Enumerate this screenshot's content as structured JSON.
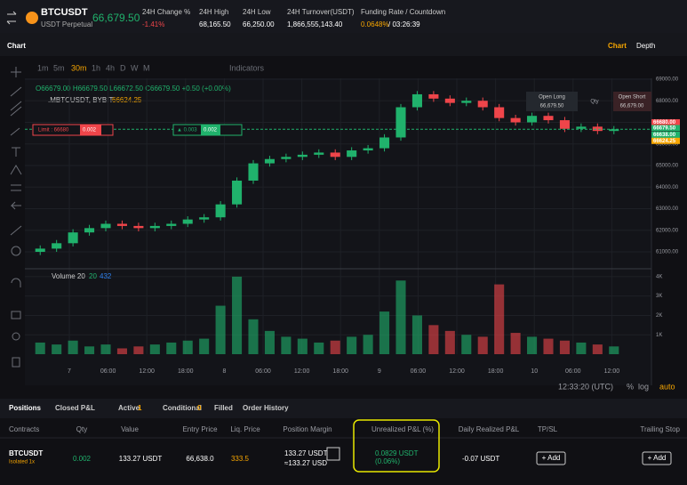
{
  "header": {
    "symbol": "BTCUSDT",
    "subtitle": "USDT Perpetual",
    "price": "66,679.50",
    "stats": [
      {
        "label": "24H Change %",
        "value": "-1.41%"
      },
      {
        "label": "24H High",
        "value": "68,165.50"
      },
      {
        "label": "24H Low",
        "value": "66,250.00"
      },
      {
        "label": "24H Turnover(USDT)",
        "value": "1,866,555,143.40"
      }
    ],
    "funding": {
      "label": "Funding Rate / Countdown",
      "rate": "0.0648%",
      "countdown": "/ 03:26:39"
    }
  },
  "panel": {
    "title": "Chart",
    "tabs": [
      "Chart",
      "Depth"
    ]
  },
  "toolbar": {
    "intervals": [
      "1m",
      "5m",
      "30m",
      "1h",
      "4h",
      "D",
      "W",
      "M"
    ],
    "indicators": "Indicators"
  },
  "legend": {
    "ohlc": "O66679.00 H66679.50 L66672.50 C66679.50 +0.50 (+0.00%)",
    "index_name": ".MBTCUSDT, BYBIT",
    "index_value": "66624.25",
    "volume": "Volume 20",
    "volume_period": "20",
    "volume_value": "432"
  },
  "orders": {
    "limit": "Limit : 66680",
    "limit_qty": "0.002",
    "position": "▲ 0.003",
    "position_qty": "0.002",
    "open_long": "Open Long",
    "open_long_price": "66,679.50",
    "qty": "Qty",
    "open_short": "Open Short",
    "open_short_price": "66,679.00"
  },
  "chart_data": {
    "type": "candlestick",
    "up_color": "#20b26c",
    "down_color": "#ef454a",
    "open": [
      61000,
      61150,
      61400,
      61900,
      62100,
      62300,
      62200,
      62100,
      62200,
      62300,
      62500,
      62600,
      63200,
      64300,
      65100,
      65300,
      65400,
      65500,
      65600,
      65400,
      65700,
      65800,
      66300,
      67700,
      68300,
      68100,
      67900,
      68000,
      67700,
      67200,
      67000,
      67300,
      67100,
      66700,
      66800,
      66600
    ],
    "high": [
      61300,
      61550,
      62050,
      62250,
      62450,
      62450,
      62350,
      62350,
      62450,
      62650,
      62750,
      63350,
      64450,
      65250,
      65450,
      65550,
      65650,
      65750,
      65750,
      65850,
      65950,
      66450,
      67850,
      68450,
      68450,
      68250,
      68150,
      68150,
      67850,
      67350,
      67450,
      67450,
      67250,
      66950,
      66950,
      66830
    ],
    "low": [
      60850,
      61000,
      61250,
      61750,
      61950,
      62050,
      61950,
      61950,
      62050,
      62150,
      62350,
      62450,
      63050,
      64150,
      64950,
      65150,
      65250,
      65350,
      65250,
      65250,
      65550,
      65650,
      66150,
      67550,
      67950,
      67750,
      67750,
      67550,
      67050,
      66850,
      66850,
      66950,
      66550,
      66550,
      66450,
      66450
    ],
    "close": [
      61150,
      61400,
      61900,
      62100,
      62300,
      62200,
      62100,
      62200,
      62300,
      62500,
      62600,
      63200,
      64300,
      65100,
      65300,
      65400,
      65500,
      65600,
      65400,
      65700,
      65800,
      66300,
      67700,
      68300,
      68100,
      67900,
      68000,
      67700,
      67200,
      67000,
      67300,
      67100,
      66700,
      66800,
      66600,
      66680
    ],
    "volume": [
      600,
      500,
      700,
      400,
      500,
      300,
      400,
      500,
      600,
      700,
      800,
      2500,
      4000,
      1800,
      1200,
      900,
      800,
      600,
      700,
      900,
      1000,
      2200,
      3800,
      2000,
      1500,
      1200,
      1000,
      900,
      3600,
      1100,
      900,
      800,
      700,
      600,
      500,
      400
    ],
    "ylim": [
      60300,
      69040
    ],
    "yticks": [
      {
        "value": 61000,
        "label": "61000.00"
      },
      {
        "value": 62000,
        "label": "62000.00"
      },
      {
        "value": 63000,
        "label": "63000.00"
      },
      {
        "value": 64000,
        "label": "64000.00"
      },
      {
        "value": 65000,
        "label": "65000.00"
      },
      {
        "value": 66000,
        "label": "66000.00"
      },
      {
        "value": 67000,
        "label": "67000.00"
      },
      {
        "value": 68000,
        "label": "68000.00"
      },
      {
        "value": 69000,
        "label": "69000.00"
      }
    ],
    "volume_ylim": [
      0,
      4270
    ],
    "volume_yticks": [
      {
        "value": 1000,
        "label": "1K"
      },
      {
        "value": 2000,
        "label": "2K"
      },
      {
        "value": 3000,
        "label": "3K"
      },
      {
        "value": 4000,
        "label": "4K"
      }
    ],
    "price_tags": [
      {
        "value": 66680,
        "label": "66680.00",
        "color": "#ef454a"
      },
      {
        "value": 66679.5,
        "label": "66679.50",
        "color": "#20b26c"
      },
      {
        "value": 66638,
        "label": "66638.00",
        "color": "#20b26c"
      },
      {
        "value": 66624.25,
        "label": "66624.25",
        "color": "#f7a600"
      }
    ],
    "time_labels": [
      "7",
      "06:00",
      "12:00",
      "18:00",
      "8",
      "06:00",
      "12:00",
      "18:00",
      "9",
      "06:00",
      "12:00",
      "18:00",
      "10",
      "06:00",
      "12:00"
    ]
  },
  "footer": {
    "clock": "12:33:20 (UTC)",
    "percent": "%",
    "log": "log",
    "auto": "auto"
  },
  "positions": {
    "tabs": [
      "Positions",
      "Closed P&L",
      "Active",
      "Conditional",
      "Filled",
      "Order History"
    ],
    "active_count": "1",
    "conditional_count": "0",
    "columns": [
      "Contracts",
      "Qty",
      "Value",
      "Entry Price",
      "Liq. Price",
      "Position Margin",
      "Unrealized P&L (%)",
      "Daily Realized P&L",
      "TP/SL",
      "Trailing Stop"
    ],
    "row": {
      "contract": "BTCUSDT",
      "mode": "Isolated 1x",
      "qty": "0.002",
      "value": "133.27 USDT",
      "entry": "66,638.0",
      "liq": "333.5",
      "margin": "133.27 USDT",
      "margin_usd": "≈133.27 USD",
      "pnl": "0.0829 USDT",
      "pnl_pct": "(0.06%)",
      "realized": "-0.07 USDT",
      "tpsl": "+ Add",
      "trailing": "+ Add"
    }
  }
}
